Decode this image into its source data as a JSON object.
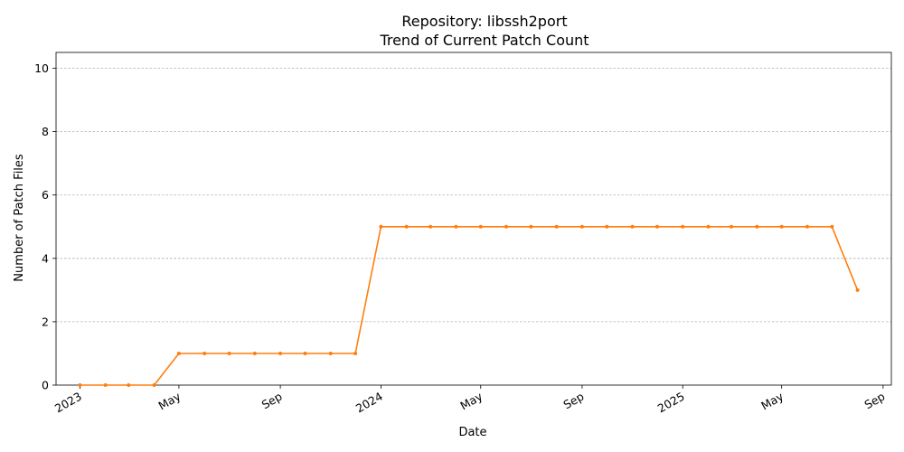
{
  "chart_data": {
    "type": "line",
    "title": "Repository: libssh2port",
    "subtitle": "Trend of Current Patch Count",
    "xlabel": "Date",
    "ylabel": "Number of Patch Files",
    "ylim": [
      0,
      10.5
    ],
    "y_ticks": [
      0,
      2,
      4,
      6,
      8,
      10
    ],
    "x_ticks": [
      {
        "label": "2023",
        "date": "2023-01-01"
      },
      {
        "label": "May",
        "date": "2023-05-01"
      },
      {
        "label": "Sep",
        "date": "2023-09-01"
      },
      {
        "label": "2024",
        "date": "2024-01-01"
      },
      {
        "label": "May",
        "date": "2024-05-01"
      },
      {
        "label": "Sep",
        "date": "2024-09-01"
      },
      {
        "label": "2025",
        "date": "2025-01-01"
      },
      {
        "label": "May",
        "date": "2025-05-01"
      },
      {
        "label": "Sep",
        "date": "2025-09-01"
      }
    ],
    "x_range": [
      "2022-12-03",
      "2025-09-11"
    ],
    "grid": "horizontal dashed",
    "color": "#ff7f0e",
    "series": [
      {
        "x": [
          "2023-01-01",
          "2023-02-01",
          "2023-03-01",
          "2023-04-01",
          "2023-05-01",
          "2023-06-01",
          "2023-07-01",
          "2023-08-01",
          "2023-09-01",
          "2023-10-01",
          "2023-11-01",
          "2023-12-01",
          "2024-01-01",
          "2024-02-01",
          "2024-03-01",
          "2024-04-01",
          "2024-05-01",
          "2024-06-01",
          "2024-07-01",
          "2024-08-01",
          "2024-09-01",
          "2024-10-01",
          "2024-11-01",
          "2024-12-01",
          "2025-01-01",
          "2025-02-01",
          "2025-03-01",
          "2025-04-01",
          "2025-05-01",
          "2025-06-01",
          "2025-07-01",
          "2025-08-01"
        ],
        "values": [
          0,
          0,
          0,
          0,
          1,
          1,
          1,
          1,
          1,
          1,
          1,
          1,
          5,
          5,
          5,
          5,
          5,
          5,
          5,
          5,
          5,
          5,
          5,
          5,
          5,
          5,
          5,
          5,
          5,
          5,
          5,
          3
        ]
      }
    ]
  }
}
